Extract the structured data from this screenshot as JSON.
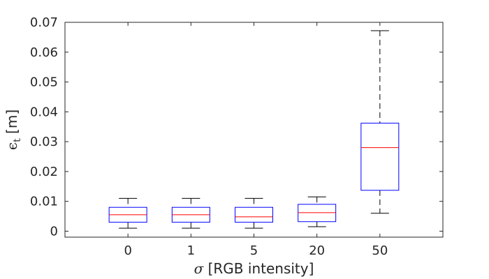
{
  "chart_data": {
    "type": "boxplot",
    "title": "",
    "xlabel": "σ [RGB intensity]",
    "xlabel_symbol": "σ",
    "xlabel_rest": " [RGB intensity]",
    "ylabel": "ϵt [m]",
    "ylabel_symbol": "ϵ",
    "ylabel_sub": "t",
    "ylabel_unit": " [m]",
    "ylim": [
      -0.002,
      0.07
    ],
    "yticks": [
      "0",
      "0.01",
      "0.02",
      "0.03",
      "0.04",
      "0.05",
      "0.06",
      "0.07"
    ],
    "ytick_values": [
      0,
      0.01,
      0.02,
      0.03,
      0.04,
      0.05,
      0.06,
      0.07
    ],
    "categories": [
      "0",
      "1",
      "5",
      "20",
      "50"
    ],
    "boxes": [
      {
        "category": "0",
        "whisker_low": 0.001,
        "q1": 0.003,
        "median": 0.0055,
        "q3": 0.008,
        "whisker_high": 0.011
      },
      {
        "category": "1",
        "whisker_low": 0.001,
        "q1": 0.003,
        "median": 0.0055,
        "q3": 0.008,
        "whisker_high": 0.011
      },
      {
        "category": "5",
        "whisker_low": 0.001,
        "q1": 0.003,
        "median": 0.0048,
        "q3": 0.008,
        "whisker_high": 0.011
      },
      {
        "category": "20",
        "whisker_low": 0.0015,
        "q1": 0.0032,
        "median": 0.0062,
        "q3": 0.009,
        "whisker_high": 0.0115
      },
      {
        "category": "50",
        "whisker_low": 0.006,
        "q1": 0.0137,
        "median": 0.028,
        "q3": 0.0362,
        "whisker_high": 0.0672
      }
    ],
    "colors": {
      "box": "#0000ff",
      "median": "#ff0000",
      "whisker": "#000000",
      "axes": "#262626"
    },
    "grid": false,
    "legend": "none"
  }
}
